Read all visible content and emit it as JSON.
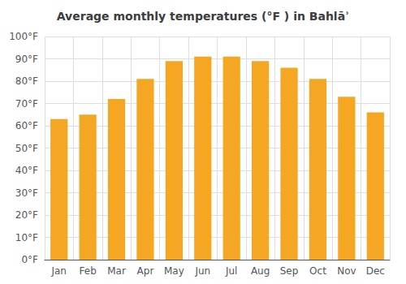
{
  "chart_data": {
    "type": "bar",
    "title": "Average monthly temperatures (°F ) in Bahlāʾ",
    "categories": [
      "Jan",
      "Feb",
      "Mar",
      "Apr",
      "May",
      "Jun",
      "Jul",
      "Aug",
      "Sep",
      "Oct",
      "Nov",
      "Dec"
    ],
    "values": [
      63,
      65,
      72,
      81,
      89,
      91,
      91,
      89,
      86,
      81,
      73,
      66
    ],
    "color": "#F5A623",
    "ylim": [
      0,
      100
    ],
    "yticks": [
      {
        "value": 0,
        "label": "0°F"
      },
      {
        "value": 10,
        "label": "10°F"
      },
      {
        "value": 20,
        "label": "20°F"
      },
      {
        "value": 30,
        "label": "30°F"
      },
      {
        "value": 40,
        "label": "40°F"
      },
      {
        "value": 50,
        "label": "50°F"
      },
      {
        "value": 60,
        "label": "60°F"
      },
      {
        "value": 70,
        "label": "70°F"
      },
      {
        "value": 80,
        "label": "80°F"
      },
      {
        "value": 90,
        "label": "90°F"
      },
      {
        "value": 100,
        "label": "100°F"
      }
    ],
    "grid": true
  }
}
